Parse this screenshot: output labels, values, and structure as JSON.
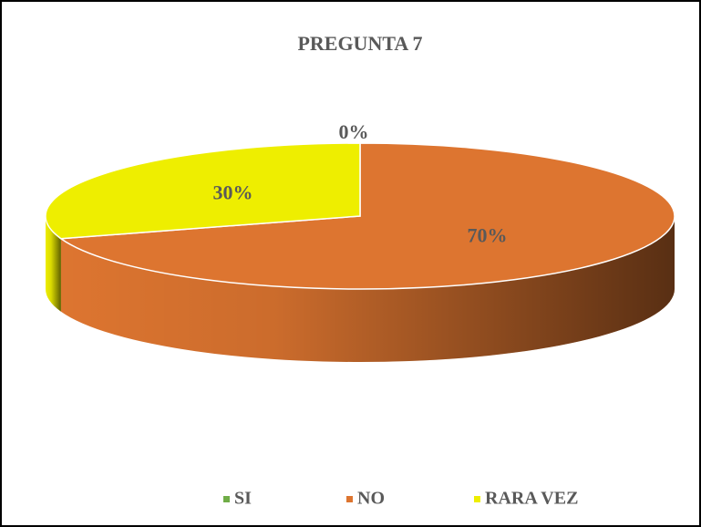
{
  "chart_data": {
    "type": "pie",
    "title": "PREGUNTA 7",
    "categories": [
      "SI",
      "NO",
      "RARA VEZ"
    ],
    "values": [
      0,
      70,
      30
    ],
    "value_labels": [
      "0%",
      "70%",
      "30%"
    ],
    "colors": [
      "#70ad47",
      "#dd7530",
      "#eeee00"
    ],
    "legend": "bottom"
  }
}
